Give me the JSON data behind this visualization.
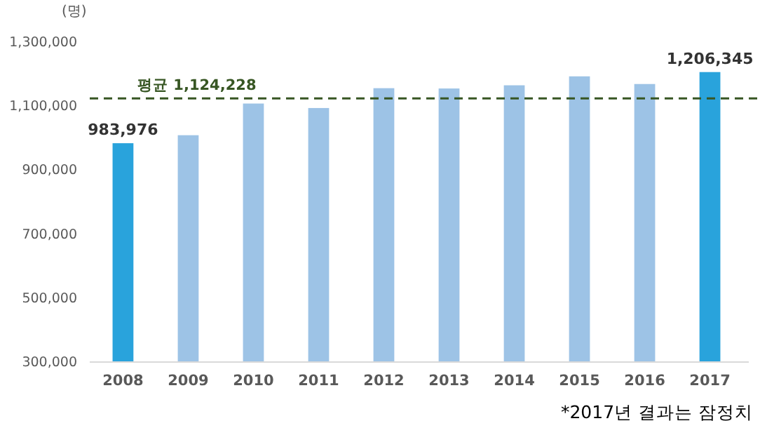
{
  "chart_data": {
    "type": "bar",
    "ylabel": "(명)",
    "categories": [
      "2008",
      "2009",
      "2010",
      "2011",
      "2012",
      "2013",
      "2014",
      "2015",
      "2016",
      "2017"
    ],
    "values": [
      983976,
      1009000,
      1108000,
      1094000,
      1156000,
      1155000,
      1165000,
      1193000,
      1169000,
      1206345
    ],
    "colors": [
      "#29a3dc",
      "#9dc3e6",
      "#9dc3e6",
      "#9dc3e6",
      "#9dc3e6",
      "#9dc3e6",
      "#9dc3e6",
      "#9dc3e6",
      "#9dc3e6",
      "#29a3dc"
    ],
    "value_labels": [
      "983,976",
      null,
      null,
      null,
      null,
      null,
      null,
      null,
      null,
      "1,206,345"
    ],
    "ylim": [
      300000,
      1300000
    ],
    "yticks": [
      {
        "value": 300000,
        "label": "300,000"
      },
      {
        "value": 500000,
        "label": "500,000"
      },
      {
        "value": 700000,
        "label": "700,000"
      },
      {
        "value": 900000,
        "label": "900,000"
      },
      {
        "value": 1100000,
        "label": "1,100,000"
      },
      {
        "value": 1300000,
        "label": "1,300,000"
      }
    ],
    "ref_lines": [
      {
        "axis": "y",
        "value": 1124228,
        "label": "평균 1,124,228",
        "color": "#375623",
        "line_style": "dashed"
      }
    ],
    "annotations": [
      "*2017년 결과는 잠정치"
    ],
    "grid": false
  }
}
